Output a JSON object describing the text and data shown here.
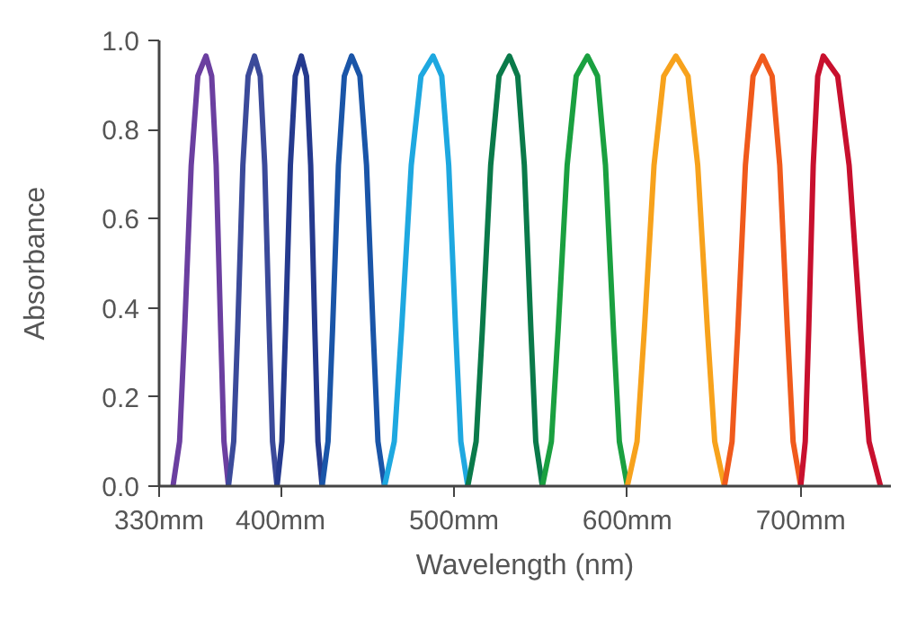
{
  "chart_data": {
    "type": "line",
    "xlabel": "Wavelength (nm)",
    "ylabel": "Absorbance",
    "xlim": [
      330,
      752
    ],
    "ylim": [
      0,
      1.0
    ],
    "xticks": [
      {
        "value": 330,
        "label": "330mm"
      },
      {
        "value": 400,
        "label": "400mm"
      },
      {
        "value": 500,
        "label": "500mm"
      },
      {
        "value": 600,
        "label": "600mm"
      },
      {
        "value": 700,
        "label": "700mm"
      }
    ],
    "yticks": [
      {
        "value": 0,
        "label": "0.0"
      },
      {
        "value": 0.2,
        "label": "0.2"
      },
      {
        "value": 0.4,
        "label": "0.4"
      },
      {
        "value": 0.6,
        "label": "0.6"
      },
      {
        "value": 0.8,
        "label": "0.8"
      },
      {
        "value": 1.0,
        "label": "1.0"
      }
    ],
    "line_style": "solid",
    "series": [
      {
        "color": "#6b3fa0",
        "x": [
          338,
          341.8,
          344.7,
          348.5,
          352.3,
          357,
          360.3,
          362.9,
          365.5,
          367.4,
          370
        ],
        "values": [
          0,
          0.1,
          0.35,
          0.72,
          0.92,
          0.965,
          0.92,
          0.72,
          0.35,
          0.1,
          0
        ]
      },
      {
        "color": "#3b4a9a",
        "x": [
          370,
          373,
          375.3,
          378.3,
          381.3,
          385,
          388.3,
          390.9,
          393.5,
          395.4,
          398
        ],
        "values": [
          0,
          0.1,
          0.35,
          0.72,
          0.92,
          0.965,
          0.92,
          0.72,
          0.35,
          0.1,
          0
        ]
      },
      {
        "color": "#253a8e",
        "x": [
          398,
          400.8,
          402.9,
          405.7,
          408.5,
          412,
          415,
          417.4,
          419.8,
          421.6,
          424
        ],
        "values": [
          0,
          0.1,
          0.35,
          0.72,
          0.92,
          0.965,
          0.92,
          0.72,
          0.35,
          0.1,
          0
        ]
      },
      {
        "color": "#1a55a8",
        "x": [
          424,
          427.4,
          430,
          433.4,
          436.8,
          441,
          445.8,
          449.6,
          453.4,
          456.2,
          460
        ],
        "values": [
          0,
          0.1,
          0.35,
          0.72,
          0.92,
          0.965,
          0.92,
          0.72,
          0.35,
          0.1,
          0
        ]
      },
      {
        "color": "#1ea8e0",
        "x": [
          460,
          465.6,
          469.8,
          475.4,
          481,
          488,
          493,
          497,
          501,
          504,
          508
        ],
        "values": [
          0,
          0.1,
          0.35,
          0.72,
          0.92,
          0.965,
          0.92,
          0.72,
          0.35,
          0.1,
          0
        ]
      },
      {
        "color": "#0a7a4a",
        "x": [
          508,
          512.8,
          516.4,
          521.2,
          526,
          532,
          536.8,
          540.6,
          544.4,
          547.2,
          551
        ],
        "values": [
          0,
          0.1,
          0.35,
          0.72,
          0.92,
          0.965,
          0.92,
          0.72,
          0.35,
          0.1,
          0
        ]
      },
      {
        "color": "#1aa040",
        "x": [
          551,
          556.2,
          560.1,
          565.3,
          570.5,
          577,
          582.8,
          587.4,
          592,
          595.4,
          600
        ],
        "values": [
          0,
          0.1,
          0.35,
          0.72,
          0.92,
          0.965,
          0.92,
          0.72,
          0.35,
          0.1,
          0
        ]
      },
      {
        "color": "#f7a21c",
        "x": [
          600,
          605.6,
          609.8,
          615.4,
          621,
          628,
          635,
          640.6,
          646.2,
          650.4,
          656
        ],
        "values": [
          0,
          0.1,
          0.35,
          0.72,
          0.92,
          0.965,
          0.92,
          0.72,
          0.35,
          0.1,
          0
        ]
      },
      {
        "color": "#f05a1c",
        "x": [
          656,
          660.4,
          663.7,
          668.1,
          672.5,
          678,
          683.5,
          687.9,
          692.3,
          695.6,
          700
        ],
        "values": [
          0,
          0.1,
          0.35,
          0.72,
          0.92,
          0.965,
          0.92,
          0.72,
          0.35,
          0.1,
          0
        ]
      },
      {
        "color": "#c8102e",
        "x": [
          700,
          702.6,
          704.6,
          707.2,
          709.8,
          713,
          721.3,
          727.9,
          734.5,
          739.4,
          746
        ],
        "values": [
          0,
          0.1,
          0.35,
          0.72,
          0.92,
          0.965,
          0.92,
          0.72,
          0.35,
          0.1,
          0
        ]
      }
    ]
  }
}
